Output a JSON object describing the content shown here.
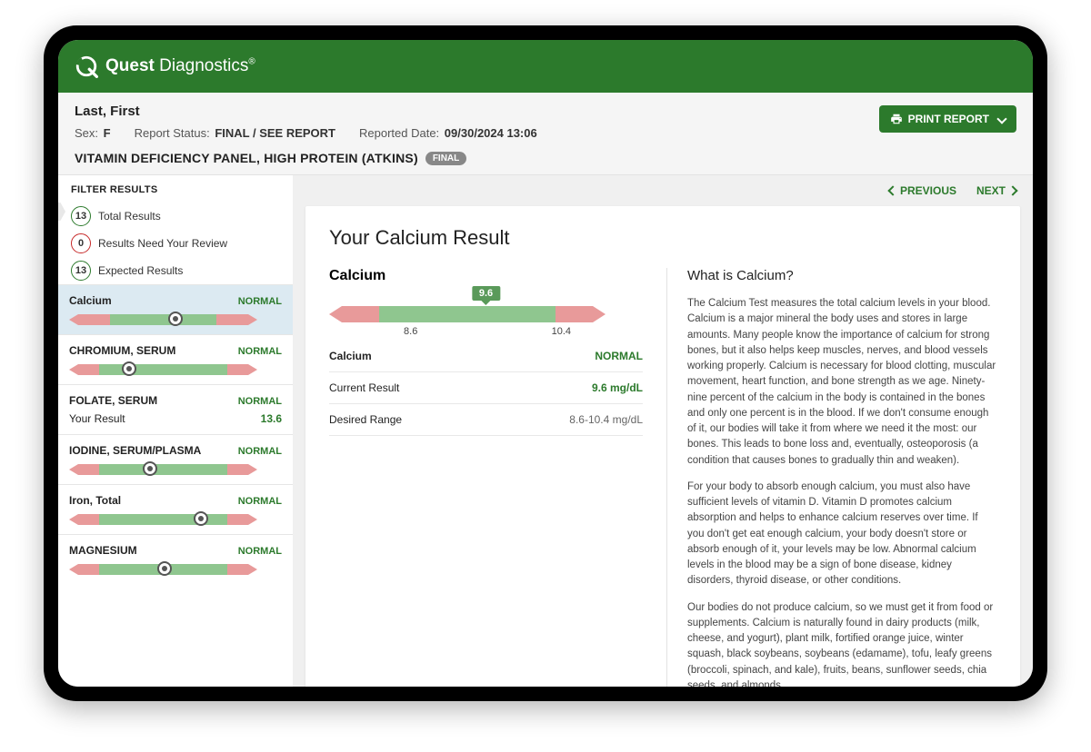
{
  "brand": {
    "name_bold": "Quest",
    "name_light": " Diagnostics",
    "reg": "®"
  },
  "header": {
    "patient_name": "Last, First",
    "sex_label": "Sex:",
    "sex_value": "F",
    "status_label": "Report Status:",
    "status_value": "FINAL / SEE REPORT",
    "date_label": "Reported Date:",
    "date_value": "09/30/2024 13:06",
    "panel_title": "VITAMIN DEFICIENCY PANEL, HIGH PROTEIN (ATKINS)",
    "panel_badge": "FINAL",
    "print_button": "PRINT REPORT"
  },
  "filters": {
    "heading": "FILTER RESULTS",
    "rows": [
      {
        "count": "13",
        "label": "Total Results",
        "ring": "#2c7a2c"
      },
      {
        "count": "0",
        "label": "Results Need Your Review",
        "ring": "#c62828"
      },
      {
        "count": "13",
        "label": "Expected Results",
        "ring": "#2c7a2c"
      }
    ]
  },
  "results": [
    {
      "name": "Calcium",
      "status": "NORMAL",
      "selected": true,
      "bar": {
        "red_left_pct": 15,
        "green_pct": 50,
        "red_right_pct": 15,
        "marker_pct": 50
      }
    },
    {
      "name": "CHROMIUM, SERUM",
      "status": "NORMAL",
      "bar": {
        "red_left_pct": 10,
        "green_pct": 60,
        "red_right_pct": 10,
        "marker_pct": 28
      }
    },
    {
      "name": "FOLATE, SERUM",
      "status": "NORMAL",
      "show_result": true,
      "result_label": "Your Result",
      "result_value": "13.6"
    },
    {
      "name": "IODINE, SERUM/PLASMA",
      "status": "NORMAL",
      "bar": {
        "red_left_pct": 10,
        "green_pct": 60,
        "red_right_pct": 10,
        "marker_pct": 38
      }
    },
    {
      "name": "Iron, Total",
      "status": "NORMAL",
      "bar": {
        "red_left_pct": 10,
        "green_pct": 60,
        "red_right_pct": 10,
        "marker_pct": 62
      }
    },
    {
      "name": "MAGNESIUM",
      "status": "NORMAL",
      "bar": {
        "red_left_pct": 10,
        "green_pct": 60,
        "red_right_pct": 10,
        "marker_pct": 45
      }
    }
  ],
  "nav": {
    "previous": "PREVIOUS",
    "next": "NEXT"
  },
  "detail": {
    "card_title": "Your Calcium Result",
    "name": "Calcium",
    "value": "9.6",
    "range_low": "8.6",
    "range_high": "10.4",
    "range_bar": {
      "red_left_pct": 12,
      "green_pct": 56,
      "red_right_pct": 12,
      "low_tick_pct": 26,
      "high_tick_pct": 74,
      "value_pct": 50
    },
    "rows": [
      {
        "label": "Calcium",
        "value": "NORMAL",
        "style": "green",
        "bold_label": true
      },
      {
        "label": "Current Result",
        "value": "9.6 mg/dL",
        "style": "green"
      },
      {
        "label": "Desired Range",
        "value": "8.6-10.4 mg/dL",
        "style": "grey"
      }
    ],
    "what_title": "What is Calcium?",
    "what_body": [
      "The Calcium Test measures the total calcium levels in your blood. Calcium is a major mineral the body uses and stores in large amounts. Many people know the importance of calcium for strong bones, but it also helps keep muscles, nerves, and blood vessels working properly. Calcium is necessary for blood clotting, muscular movement, heart function, and bone strength as we age. Ninety-nine percent of the calcium in the body is contained in the bones and only one percent is in the blood. If we don't consume enough of it, our bodies will take it from where we need it the most: our bones. This leads to bone loss and, eventually, osteoporosis (a condition that causes bones to gradually thin and weaken).",
      "For your body to absorb enough calcium, you must also have sufficient levels of vitamin D. Vitamin D promotes calcium absorption and helps to enhance calcium reserves over time. If you don't get eat enough calcium, your body doesn't store or absorb enough of it, your levels may be low. Abnormal calcium levels in the blood may be a sign of bone disease, kidney disorders, thyroid disease, or other conditions.",
      "Our bodies do not produce calcium, so we must get it from food or supplements. Calcium is naturally found in dairy products (milk, cheese, and yogurt), plant milk, fortified orange juice, winter squash, black soybeans, soybeans (edamame), tofu, leafy greens (broccoli, spinach, and kale), fruits, beans, sunflower seeds, chia seeds, and almonds."
    ]
  },
  "colors": {
    "brand_green": "#2c7a2c",
    "range_green": "#8fc68f",
    "range_red": "#e89a9a"
  }
}
